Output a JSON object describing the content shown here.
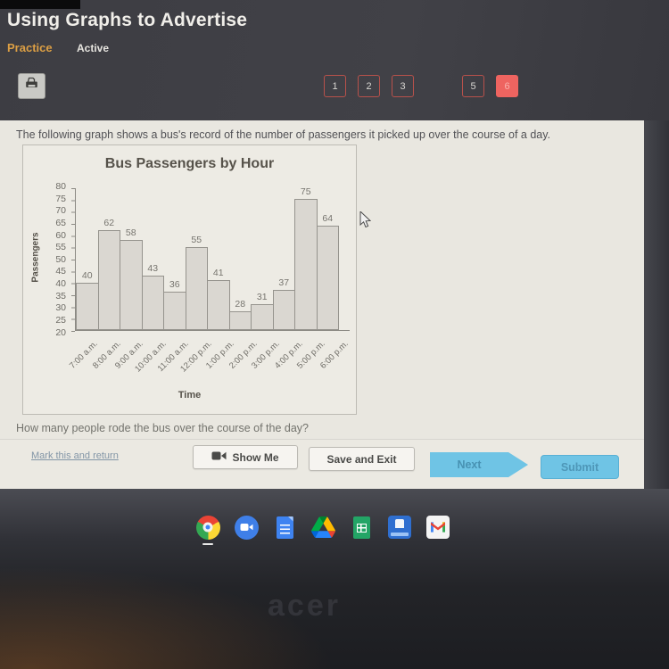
{
  "header": {
    "title": "Using Graphs to Advertise",
    "mode_label": "Practice",
    "status_label": "Active",
    "nav_items": [
      {
        "label": "1",
        "active": false,
        "gap_before": false
      },
      {
        "label": "2",
        "active": false,
        "gap_before": false
      },
      {
        "label": "3",
        "active": false,
        "gap_before": false
      },
      {
        "label": "5",
        "active": false,
        "gap_before": true
      },
      {
        "label": "6",
        "active": true,
        "gap_before": false
      }
    ],
    "nav_accent_color": "#ee6460"
  },
  "main": {
    "instruction": "The following graph shows a bus's record of the number of passengers it picked up over the course of a day.",
    "question": "How many people rode the bus over the course of the day?"
  },
  "chart_data": {
    "type": "bar",
    "title": "Bus Passengers by Hour",
    "xlabel": "Time",
    "ylabel": "Passengers",
    "categories": [
      "7:00 a.m.",
      "8:00 a.m.",
      "9:00 a.m.",
      "10:00 a.m.",
      "11:00 a.m.",
      "12:00 p.m.",
      "1:00 p.m.",
      "2:00 p.m.",
      "3:00 p.m.",
      "4:00 p.m.",
      "5:00 p.m.",
      "6:00 p.m."
    ],
    "values": [
      40,
      62,
      58,
      43,
      36,
      55,
      41,
      28,
      31,
      37,
      75,
      64
    ],
    "ylim": [
      20,
      80
    ],
    "ytick_step": 5,
    "grid": false,
    "legend": "none",
    "bar_fill": "#dad7d1",
    "bar_border": "#95938d"
  },
  "footer": {
    "mark_link": "Mark this and return",
    "show_me_label": "Show Me",
    "save_exit_label": "Save and Exit",
    "next_label": "Next",
    "submit_label": "Submit",
    "button_blue": "#6fc4e5"
  },
  "taskbar": {
    "icons": [
      "chrome-icon",
      "zoom-icon",
      "google-docs-icon",
      "google-drive-icon",
      "google-sheets-icon",
      "school-app-icon",
      "gmail-icon"
    ]
  },
  "device": {
    "brand_logo": "acer"
  }
}
